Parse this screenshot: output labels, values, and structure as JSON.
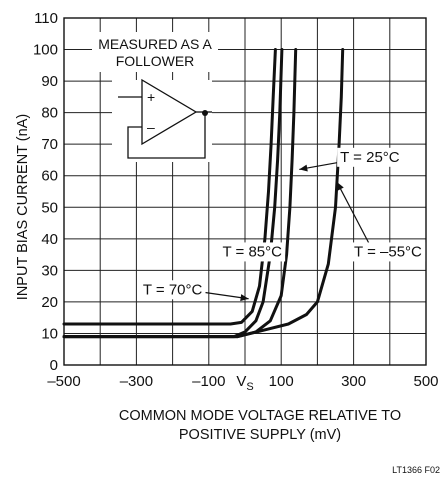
{
  "chart_data": {
    "type": "line",
    "title": "",
    "xlabel_line1": "COMMON MODE VOLTAGE RELATIVE TO",
    "xlabel_line2": "POSITIVE SUPPLY (mV)",
    "ylabel": "INPUT BIAS CURRENT (nA)",
    "xlim": [
      -500,
      500
    ],
    "ylim": [
      0,
      110
    ],
    "grid": true,
    "x_ticks": [
      {
        "value": -500,
        "label": "–500"
      },
      {
        "value": -300,
        "label": "–300"
      },
      {
        "value": -100,
        "label": "–100"
      },
      {
        "value": 0,
        "label": "V",
        "sub": "S"
      },
      {
        "value": 100,
        "label": "100"
      },
      {
        "value": 300,
        "label": "300"
      },
      {
        "value": 500,
        "label": "500"
      }
    ],
    "x_grid": [
      -500,
      -400,
      -300,
      -200,
      -100,
      0,
      100,
      200,
      300,
      400,
      500
    ],
    "y_ticks": [
      0,
      10,
      20,
      30,
      40,
      50,
      60,
      70,
      80,
      90,
      100,
      110
    ],
    "series": [
      {
        "name": "T = 85°C",
        "points": [
          [
            -500,
            13
          ],
          [
            -40,
            13
          ],
          [
            -10,
            13.5
          ],
          [
            20,
            17
          ],
          [
            40,
            25
          ],
          [
            55,
            40
          ],
          [
            65,
            55
          ],
          [
            72,
            70
          ],
          [
            78,
            85
          ],
          [
            84,
            100
          ]
        ]
      },
      {
        "name": "T = 70°C",
        "points": [
          [
            -500,
            9
          ],
          [
            -30,
            9
          ],
          [
            0,
            10.5
          ],
          [
            30,
            14
          ],
          [
            50,
            20
          ],
          [
            70,
            35
          ],
          [
            82,
            50
          ],
          [
            90,
            65
          ],
          [
            96,
            80
          ],
          [
            102,
            100
          ]
        ]
      },
      {
        "name": "T = 25°C",
        "points": [
          [
            -500,
            9
          ],
          [
            -20,
            9
          ],
          [
            30,
            10.5
          ],
          [
            70,
            14
          ],
          [
            100,
            22
          ],
          [
            115,
            35
          ],
          [
            124,
            50
          ],
          [
            130,
            65
          ],
          [
            135,
            80
          ],
          [
            140,
            100
          ]
        ]
      },
      {
        "name": "T = –55°C",
        "points": [
          [
            -500,
            9
          ],
          [
            -20,
            9
          ],
          [
            50,
            11
          ],
          [
            120,
            13
          ],
          [
            170,
            16
          ],
          [
            200,
            20
          ],
          [
            230,
            32
          ],
          [
            250,
            50
          ],
          [
            260,
            70
          ],
          [
            266,
            85
          ],
          [
            270,
            100
          ]
        ]
      }
    ],
    "annotations": [
      {
        "text": "T = 85°C",
        "x": 20,
        "y": 36
      },
      {
        "text": "T = 70°C",
        "x": -200,
        "y": 24
      },
      {
        "text": "T = 25°C",
        "x": 345,
        "y": 66
      },
      {
        "text": "T = –55°C",
        "x": 395,
        "y": 36
      }
    ],
    "inset": {
      "line1": "MEASURED AS A",
      "line2": "FOLLOWER"
    }
  },
  "figure_id": "LT1366 F02"
}
